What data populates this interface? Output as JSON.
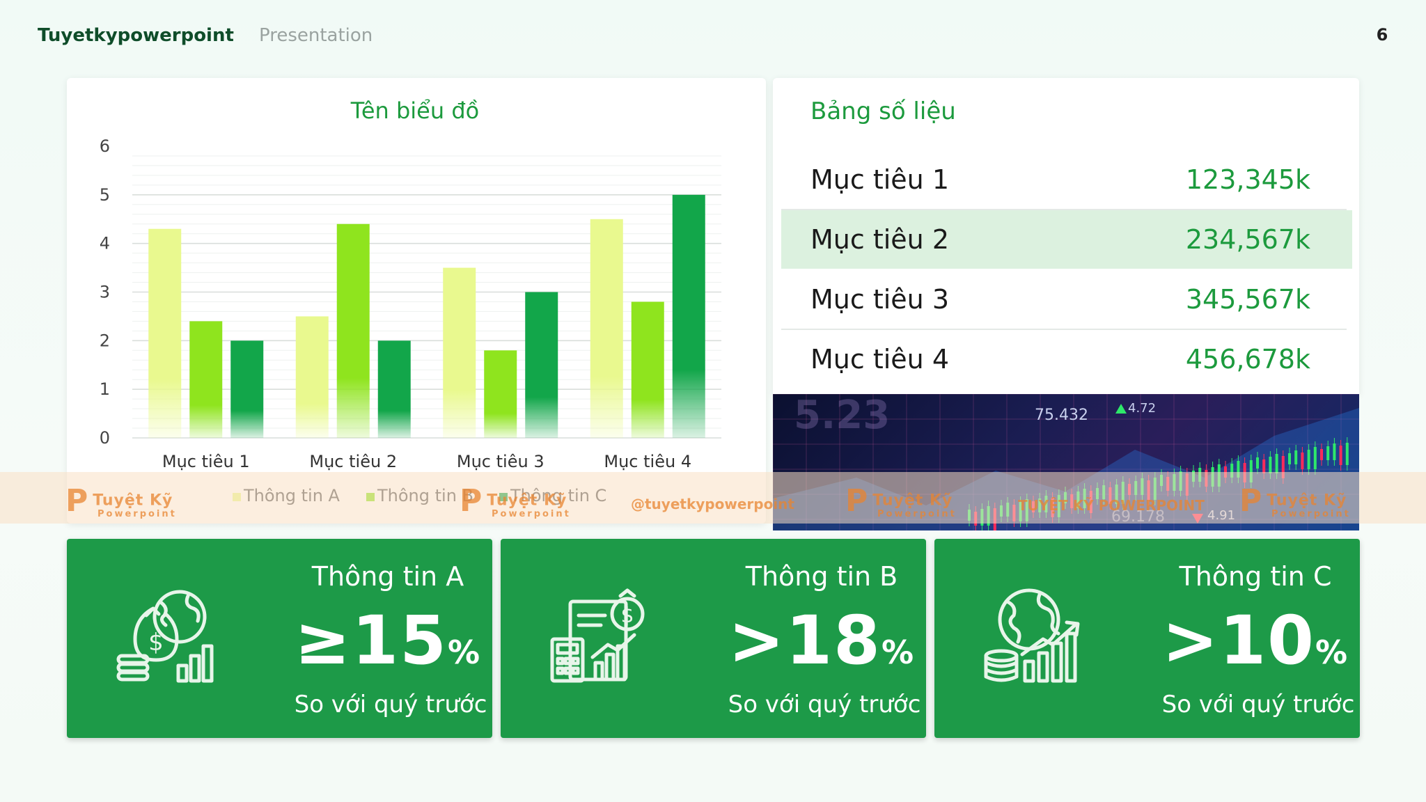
{
  "header": {
    "brand": "Tuyetkypowerpoint",
    "subtitle": "Presentation",
    "page_number": "6"
  },
  "chart_data": {
    "type": "bar",
    "title": "Tên biểu đồ",
    "categories": [
      "Mục tiêu 1",
      "Mục tiêu 2",
      "Mục tiêu 3",
      "Mục tiêu 4"
    ],
    "series": [
      {
        "name": "Thông tin A",
        "values": [
          4.3,
          2.5,
          3.5,
          4.5
        ],
        "color": "#e9f98f"
      },
      {
        "name": "Thông tin B",
        "values": [
          2.4,
          4.4,
          1.8,
          2.8
        ],
        "color": "#8fe41e"
      },
      {
        "name": "Thông tin C",
        "values": [
          2.0,
          2.0,
          3.0,
          5.0
        ],
        "color": "#12a64a"
      }
    ],
    "ylim": [
      0,
      6
    ],
    "yticks": [
      "0",
      "1",
      "2",
      "3",
      "4",
      "5",
      "6"
    ],
    "grid": true,
    "legend": "bottom"
  },
  "table": {
    "title": "Bảng số liệu",
    "rows": [
      {
        "label": "Mục tiêu 1",
        "value": "123,345k"
      },
      {
        "label": "Mục tiêu 2",
        "value": "234,567k"
      },
      {
        "label": "Mục tiêu 3",
        "value": "345,567k"
      },
      {
        "label": "Mục tiêu 4",
        "value": "456,678k"
      }
    ],
    "highlight_color": "#dcf1df"
  },
  "photo": {
    "labels": [
      "5.23",
      "75.432",
      "4.72",
      "69.178",
      "4.91"
    ]
  },
  "watermark": {
    "logo": "Tuyệt Kỹ",
    "logo_sub": "Powerpoint",
    "handle": "@tuyetkypowerpoint",
    "caption": "TUYỆT KỸ POWERPOINT"
  },
  "cards": [
    {
      "title": "Thông tin A",
      "value": "≥15",
      "unit": "%",
      "note": "So với quý trước",
      "icon": "money-bag-globe-icon"
    },
    {
      "title": "Thông tin B",
      "value": ">18",
      "unit": "%",
      "note": "So với quý trước",
      "icon": "calculator-report-icon"
    },
    {
      "title": "Thông tin C",
      "value": ">10",
      "unit": "%",
      "note": "So với quý trước",
      "icon": "globe-coins-growth-icon"
    }
  ],
  "colors": {
    "accent": "#1c9a3d",
    "card": "#1d9a48",
    "brand": "#0f4d2a"
  }
}
